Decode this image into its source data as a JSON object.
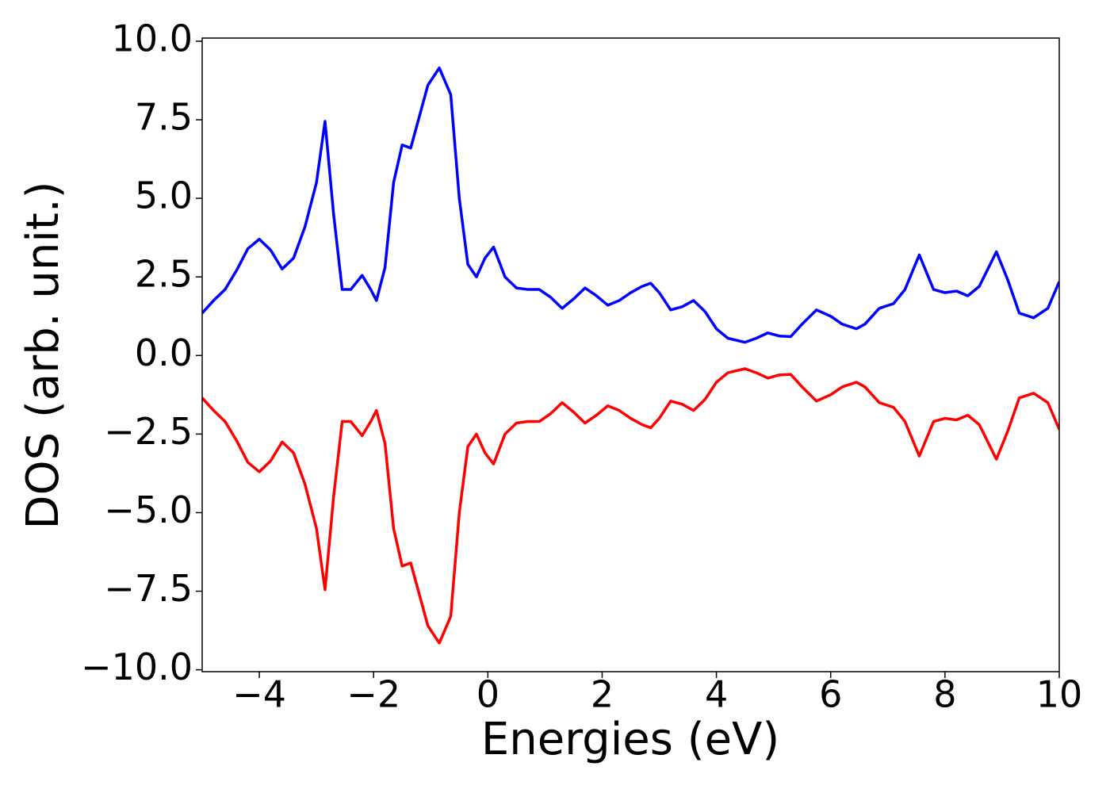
{
  "chart_data": {
    "type": "line",
    "x_label": "Energies (eV)",
    "y_label": "DOS (arb. unit.)",
    "x": [
      -5.0,
      -4.8,
      -4.6,
      -4.4,
      -4.2,
      -4.0,
      -3.8,
      -3.6,
      -3.4,
      -3.2,
      -3.0,
      -2.85,
      -2.7,
      -2.55,
      -2.4,
      -2.2,
      -2.05,
      -1.95,
      -1.8,
      -1.65,
      -1.5,
      -1.35,
      -1.2,
      -1.05,
      -0.85,
      -0.65,
      -0.5,
      -0.35,
      -0.2,
      -0.05,
      0.1,
      0.3,
      0.5,
      0.7,
      0.9,
      1.1,
      1.3,
      1.5,
      1.7,
      1.9,
      2.1,
      2.3,
      2.5,
      2.7,
      2.85,
      3.0,
      3.2,
      3.4,
      3.6,
      3.8,
      4.0,
      4.2,
      4.5,
      4.7,
      4.9,
      5.1,
      5.3,
      5.5,
      5.75,
      6.0,
      6.2,
      6.45,
      6.6,
      6.85,
      7.1,
      7.3,
      7.55,
      7.8,
      8.0,
      8.2,
      8.4,
      8.6,
      8.9,
      9.1,
      9.3,
      9.55,
      9.8,
      10.0
    ],
    "series": [
      {
        "color": "#0000ff",
        "values": [
          1.35,
          1.75,
          2.1,
          2.7,
          3.4,
          3.7,
          3.35,
          2.75,
          3.1,
          4.1,
          5.5,
          7.45,
          4.5,
          2.1,
          2.1,
          2.55,
          2.1,
          1.75,
          2.8,
          5.5,
          6.7,
          6.6,
          7.6,
          8.6,
          9.15,
          8.3,
          5.0,
          2.9,
          2.5,
          3.1,
          3.45,
          2.5,
          2.15,
          2.1,
          2.1,
          1.85,
          1.5,
          1.8,
          2.15,
          1.9,
          1.6,
          1.75,
          2.0,
          2.2,
          2.3,
          2.0,
          1.45,
          1.55,
          1.75,
          1.4,
          0.85,
          0.55,
          0.42,
          0.55,
          0.72,
          0.62,
          0.6,
          1.0,
          1.45,
          1.25,
          1.0,
          0.85,
          1.0,
          1.5,
          1.65,
          2.1,
          3.2,
          2.1,
          2.0,
          2.05,
          1.9,
          2.2,
          3.3,
          2.4,
          1.35,
          1.2,
          1.5,
          2.35
        ]
      },
      {
        "color": "#ff0000",
        "values": [
          -1.35,
          -1.75,
          -2.1,
          -2.7,
          -3.4,
          -3.7,
          -3.35,
          -2.75,
          -3.1,
          -4.1,
          -5.5,
          -7.45,
          -4.5,
          -2.1,
          -2.1,
          -2.55,
          -2.1,
          -1.75,
          -2.8,
          -5.5,
          -6.7,
          -6.6,
          -7.6,
          -8.6,
          -9.15,
          -8.3,
          -5.0,
          -2.9,
          -2.5,
          -3.1,
          -3.45,
          -2.5,
          -2.15,
          -2.1,
          -2.1,
          -1.85,
          -1.5,
          -1.8,
          -2.15,
          -1.9,
          -1.6,
          -1.75,
          -2.0,
          -2.2,
          -2.3,
          -2.0,
          -1.45,
          -1.55,
          -1.75,
          -1.4,
          -0.85,
          -0.55,
          -0.42,
          -0.55,
          -0.72,
          -0.62,
          -0.6,
          -1.0,
          -1.45,
          -1.25,
          -1.0,
          -0.85,
          -1.0,
          -1.5,
          -1.65,
          -2.1,
          -3.2,
          -2.1,
          -2.0,
          -2.05,
          -1.9,
          -2.2,
          -3.3,
          -2.4,
          -1.35,
          -1.2,
          -1.5,
          -2.35
        ]
      }
    ],
    "xlim": [
      -5,
      10
    ],
    "ylim": [
      -10.06,
      10.1
    ],
    "xticks": [
      {
        "value": -4,
        "label": "−4"
      },
      {
        "value": -2,
        "label": "−2"
      },
      0,
      2,
      4,
      6,
      8,
      10
    ],
    "yticks": [
      {
        "value": -10,
        "label": "−10.0"
      },
      {
        "value": -7.5,
        "label": "−7.5"
      },
      {
        "value": -5,
        "label": "−5.0"
      },
      {
        "value": -2.5,
        "label": "−2.5"
      },
      {
        "value": 0,
        "label": "0.0"
      },
      2.5,
      {
        "value": 5,
        "label": "5.0"
      },
      7.5,
      {
        "value": 10,
        "label": "10.0"
      }
    ],
    "grid": false
  }
}
